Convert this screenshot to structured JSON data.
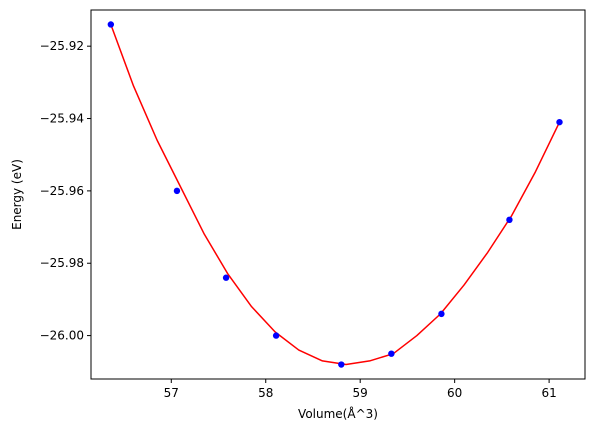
{
  "chart_data": {
    "type": "scatter",
    "title": "",
    "xlabel": "Volume(Å^3)",
    "ylabel": "Energy (eV)",
    "xlim": [
      56.15,
      61.38
    ],
    "ylim": [
      -26.012,
      -25.91
    ],
    "xticks": [
      57,
      58,
      59,
      60,
      61
    ],
    "xtick_labels": [
      "57",
      "58",
      "59",
      "60",
      "61"
    ],
    "yticks": [
      -25.92,
      -25.94,
      -25.96,
      -25.98,
      -26.0
    ],
    "ytick_labels": [
      "−25.92",
      "−25.94",
      "−25.96",
      "−25.98",
      "−26.00"
    ],
    "grid": false,
    "series": [
      {
        "kind": "points",
        "color": "#0000ff",
        "x": [
          56.36,
          57.06,
          57.58,
          58.11,
          58.8,
          59.33,
          59.86,
          60.58,
          61.11
        ],
        "y": [
          -25.914,
          -25.96,
          -25.984,
          -26.0,
          -26.008,
          -26.005,
          -25.994,
          -25.968,
          -25.941
        ]
      },
      {
        "kind": "fit-curve",
        "color": "#ff0000",
        "x": [
          56.36,
          56.6,
          56.85,
          57.1,
          57.35,
          57.6,
          57.85,
          58.1,
          58.35,
          58.6,
          58.85,
          59.1,
          59.35,
          59.6,
          59.85,
          60.1,
          60.35,
          60.6,
          60.85,
          61.11
        ],
        "y": [
          -25.914,
          -25.931,
          -25.946,
          -25.959,
          -25.972,
          -25.983,
          -25.992,
          -25.999,
          -26.004,
          -26.007,
          -26.008,
          -26.007,
          -26.005,
          -26.0,
          -25.994,
          -25.986,
          -25.977,
          -25.967,
          -25.955,
          -25.941
        ]
      }
    ]
  }
}
